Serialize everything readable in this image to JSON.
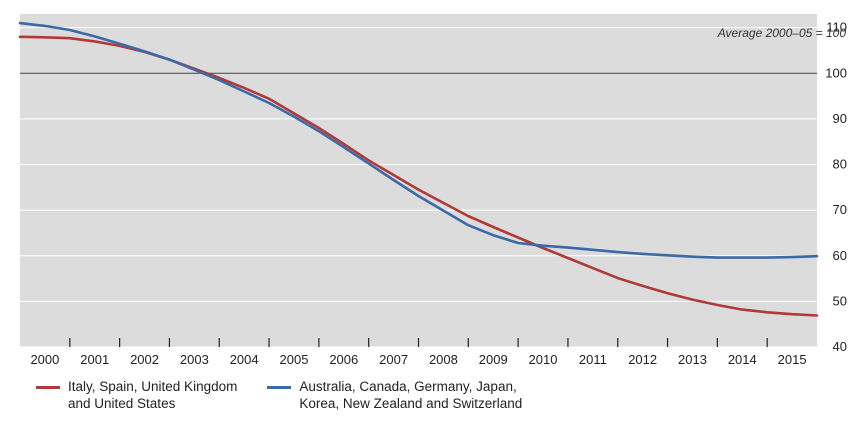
{
  "chart_data": {
    "type": "line",
    "annotation": "Average 2000–05 = 100",
    "reference_line": 100,
    "x": [
      "2000",
      "2001",
      "2002",
      "2003",
      "2004",
      "2005",
      "2006",
      "2007",
      "2008",
      "2009",
      "2010",
      "2011",
      "2012",
      "2013",
      "2014",
      "2015"
    ],
    "ylim": [
      40,
      113
    ],
    "yticks": [
      40,
      50,
      60,
      70,
      80,
      90,
      100,
      110
    ],
    "y_axis_side": "right",
    "grid": true,
    "legend_position": "bottom",
    "series": [
      {
        "name": "Italy, Spain, United Kingdom\nand United States",
        "color": "#b03a3a",
        "x": [
          0,
          0.5,
          1,
          1.5,
          2,
          2.5,
          3,
          3.5,
          4,
          4.5,
          5,
          5.5,
          6,
          6.5,
          7,
          7.5,
          8,
          8.5,
          9,
          9.5,
          10,
          10.5,
          11,
          11.5,
          12,
          12.5,
          13,
          13.5,
          14,
          14.5,
          15,
          15.5,
          16
        ],
        "values": [
          108,
          107.9,
          107.7,
          107,
          106,
          104.7,
          103,
          101,
          99,
          96.8,
          94.4,
          91.2,
          88,
          84.5,
          80.9,
          77.7,
          74.5,
          71.6,
          68.7,
          66.3,
          64,
          61.7,
          59.5,
          57.3,
          55.1,
          53.4,
          51.8,
          50.4,
          49.2,
          48.2,
          47.6,
          47.2,
          46.9
        ]
      },
      {
        "name": "Australia, Canada, Germany, Japan,\nKorea, New Zealand and Switzerland",
        "color": "#3a6aa8",
        "x": [
          0,
          0.5,
          1,
          1.5,
          2,
          2.5,
          3,
          3.5,
          4,
          4.5,
          5,
          5.5,
          6,
          6.5,
          7,
          7.5,
          8,
          8.5,
          9,
          9.5,
          10,
          10.5,
          11,
          11.5,
          12,
          12.5,
          13,
          13.5,
          14,
          14.5,
          15,
          15.5,
          16
        ],
        "values": [
          111,
          110.4,
          109.5,
          108.1,
          106.5,
          104.8,
          103,
          100.8,
          98.5,
          96,
          93.5,
          90.5,
          87.3,
          83.8,
          80.2,
          76.6,
          73.1,
          69.9,
          66.7,
          64.5,
          62.8,
          62.2,
          61.8,
          61.3,
          60.8,
          60.4,
          60.1,
          59.8,
          59.6,
          59.6,
          59.6,
          59.7,
          59.9
        ]
      }
    ]
  }
}
